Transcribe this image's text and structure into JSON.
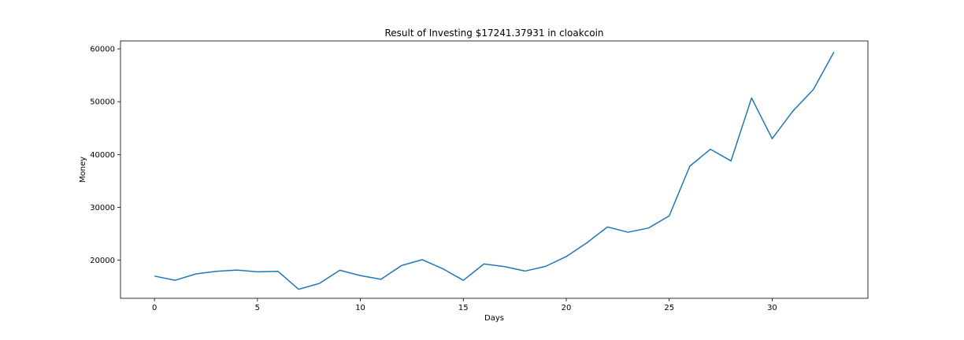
{
  "chart_data": {
    "type": "line",
    "title": "Result of Investing $17241.37931 in cloakcoin",
    "xlabel": "Days",
    "ylabel": "Money",
    "xlim": [
      -1.65,
      34.65
    ],
    "ylim": [
      12800,
      61500
    ],
    "xticks": [
      0,
      5,
      10,
      15,
      20,
      25,
      30
    ],
    "yticks": [
      20000,
      30000,
      40000,
      50000,
      60000
    ],
    "grid": false,
    "series": [
      {
        "color": "#1f77b4",
        "x": [
          0,
          1,
          2,
          3,
          4,
          5,
          6,
          7,
          8,
          9,
          10,
          11,
          12,
          13,
          14,
          15,
          16,
          17,
          18,
          19,
          20,
          21,
          22,
          23,
          24,
          25,
          26,
          27,
          28,
          29,
          30,
          31,
          32,
          33
        ],
        "y": [
          17000,
          16200,
          17400,
          17900,
          18150,
          17800,
          17900,
          14500,
          15600,
          18100,
          17100,
          16400,
          19000,
          20100,
          18400,
          16200,
          19300,
          18800,
          17950,
          18850,
          20700,
          23300,
          26300,
          25300,
          26100,
          28400,
          37800,
          41000,
          38800,
          50700,
          43000,
          48200,
          52300,
          59400
        ]
      }
    ]
  }
}
